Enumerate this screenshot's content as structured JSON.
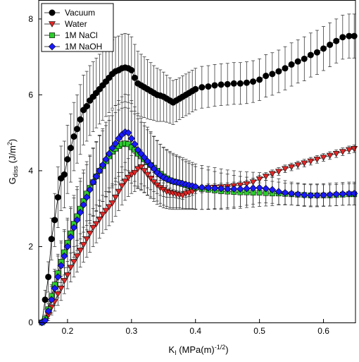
{
  "chart_data": {
    "type": "scatter",
    "title": "",
    "xlabel": {
      "main": "K",
      "sub": "I",
      "rest": " (MPa(m)",
      "sup": "-1/2",
      "end": ")"
    },
    "ylabel": {
      "main": "G",
      "sub": "diss",
      "rest": " (J/m",
      "sup": "2",
      "end": ")"
    },
    "xlim": [
      0.155,
      0.65
    ],
    "ylim": [
      0,
      8.5
    ],
    "xticks": [
      0.2,
      0.3,
      0.4,
      0.5,
      0.6
    ],
    "xtick_labels": [
      "0.2",
      "0.3",
      "0.4",
      "0.5",
      "0.6"
    ],
    "yticks": [
      0,
      2,
      4,
      6,
      8
    ],
    "ytick_labels": [
      "0",
      "2",
      "4",
      "6",
      "8"
    ],
    "grid": false,
    "legend_position": "top-left",
    "series": [
      {
        "name": "Vacuum",
        "color": "#000000",
        "marker": "circle",
        "x": [
          0.16,
          0.165,
          0.17,
          0.175,
          0.18,
          0.185,
          0.19,
          0.195,
          0.2,
          0.205,
          0.21,
          0.215,
          0.22,
          0.225,
          0.23,
          0.235,
          0.24,
          0.245,
          0.25,
          0.255,
          0.26,
          0.265,
          0.27,
          0.275,
          0.28,
          0.285,
          0.29,
          0.295,
          0.3,
          0.305,
          0.31,
          0.315,
          0.32,
          0.325,
          0.33,
          0.335,
          0.34,
          0.345,
          0.35,
          0.355,
          0.36,
          0.365,
          0.37,
          0.375,
          0.38,
          0.385,
          0.39,
          0.395,
          0.4,
          0.41,
          0.42,
          0.43,
          0.44,
          0.45,
          0.46,
          0.47,
          0.48,
          0.49,
          0.5,
          0.51,
          0.52,
          0.53,
          0.54,
          0.55,
          0.56,
          0.57,
          0.58,
          0.59,
          0.6,
          0.61,
          0.62,
          0.63,
          0.64,
          0.648
        ],
        "y": [
          0,
          0.6,
          1.2,
          2.2,
          2.7,
          3.3,
          3.8,
          3.9,
          4.3,
          4.6,
          4.9,
          5.1,
          5.35,
          5.6,
          5.7,
          5.85,
          5.95,
          6.05,
          6.15,
          6.25,
          6.35,
          6.45,
          6.55,
          6.62,
          6.65,
          6.7,
          6.72,
          6.7,
          6.65,
          6.45,
          6.3,
          6.25,
          6.2,
          6.15,
          6.1,
          6.05,
          6.0,
          5.98,
          5.95,
          5.9,
          5.85,
          5.8,
          5.85,
          5.9,
          5.95,
          6.0,
          6.05,
          6.1,
          6.15,
          6.2,
          6.22,
          6.25,
          6.27,
          6.28,
          6.3,
          6.3,
          6.32,
          6.35,
          6.4,
          6.5,
          6.55,
          6.62,
          6.7,
          6.8,
          6.88,
          6.95,
          7.05,
          7.12,
          7.22,
          7.32,
          7.42,
          7.52,
          7.55,
          7.55
        ],
        "err": [
          0,
          0.25,
          0.4,
          0.55,
          0.7,
          0.8,
          0.85,
          0.88,
          0.9,
          0.9,
          0.9,
          0.9,
          0.92,
          0.92,
          0.92,
          0.92,
          0.92,
          0.92,
          0.92,
          0.92,
          0.92,
          0.92,
          0.9,
          0.9,
          0.9,
          0.9,
          0.9,
          0.9,
          0.88,
          0.88,
          0.85,
          0.82,
          0.8,
          0.78,
          0.75,
          0.72,
          0.7,
          0.68,
          0.65,
          0.62,
          0.6,
          0.58,
          0.56,
          0.55,
          0.55,
          0.55,
          0.55,
          0.55,
          0.55,
          0.55,
          0.55,
          0.55,
          0.55,
          0.55,
          0.55,
          0.55,
          0.55,
          0.55,
          0.55,
          0.56,
          0.56,
          0.56,
          0.57,
          0.57,
          0.57,
          0.58,
          0.58,
          0.58,
          0.58,
          0.58,
          0.58,
          0.58,
          0.58,
          0.58
        ]
      },
      {
        "name": "Water",
        "color": "#e32626",
        "marker": "triangle-down",
        "x": [
          0.16,
          0.165,
          0.17,
          0.175,
          0.18,
          0.185,
          0.19,
          0.195,
          0.2,
          0.205,
          0.21,
          0.215,
          0.22,
          0.225,
          0.23,
          0.235,
          0.24,
          0.245,
          0.25,
          0.255,
          0.26,
          0.265,
          0.27,
          0.275,
          0.28,
          0.285,
          0.29,
          0.295,
          0.3,
          0.305,
          0.31,
          0.315,
          0.32,
          0.325,
          0.33,
          0.335,
          0.34,
          0.345,
          0.35,
          0.355,
          0.36,
          0.365,
          0.37,
          0.375,
          0.38,
          0.385,
          0.39,
          0.395,
          0.4,
          0.41,
          0.42,
          0.43,
          0.44,
          0.45,
          0.46,
          0.47,
          0.48,
          0.49,
          0.5,
          0.51,
          0.52,
          0.53,
          0.54,
          0.55,
          0.56,
          0.57,
          0.58,
          0.59,
          0.6,
          0.61,
          0.62,
          0.63,
          0.64,
          0.648
        ],
        "y": [
          0,
          0.05,
          0.2,
          0.4,
          0.55,
          0.75,
          0.9,
          1.1,
          1.25,
          1.45,
          1.6,
          1.75,
          1.9,
          2.05,
          2.2,
          2.35,
          2.5,
          2.6,
          2.72,
          2.85,
          2.95,
          3.05,
          3.15,
          3.3,
          3.45,
          3.6,
          3.72,
          3.82,
          3.9,
          3.95,
          4.05,
          4.1,
          4.0,
          3.9,
          3.8,
          3.7,
          3.62,
          3.55,
          3.5,
          3.45,
          3.42,
          3.4,
          3.38,
          3.36,
          3.35,
          3.4,
          3.42,
          3.45,
          3.5,
          3.52,
          3.55,
          3.56,
          3.57,
          3.58,
          3.6,
          3.62,
          3.65,
          3.7,
          3.78,
          3.85,
          3.92,
          3.98,
          4.05,
          4.1,
          4.15,
          4.2,
          4.25,
          4.3,
          4.35,
          4.4,
          4.45,
          4.5,
          4.55,
          4.58
        ],
        "err": [
          0,
          0.05,
          0.15,
          0.2,
          0.25,
          0.3,
          0.32,
          0.34,
          0.36,
          0.38,
          0.4,
          0.42,
          0.44,
          0.46,
          0.48,
          0.5,
          0.5,
          0.5,
          0.5,
          0.5,
          0.5,
          0.5,
          0.5,
          0.5,
          0.5,
          0.5,
          0.5,
          0.5,
          0.5,
          0.5,
          0.5,
          0.45,
          0.4,
          0.35,
          0.3,
          0.25,
          0.22,
          0.2,
          0.18,
          0.15,
          0.12,
          0.1,
          0.1,
          0.1,
          0.1,
          0.1,
          0.1,
          0.1,
          0.1,
          0.1,
          0.1,
          0.1,
          0.1,
          0.1,
          0.1,
          0.1,
          0.1,
          0.1,
          0.1,
          0.1,
          0.1,
          0.1,
          0.1,
          0.1,
          0.1,
          0.1,
          0.1,
          0.1,
          0.1,
          0.1,
          0.1,
          0.1,
          0.1,
          0.1
        ]
      },
      {
        "name": "1M NaCl",
        "color": "#2ecc2e",
        "marker": "square",
        "x": [
          0.16,
          0.165,
          0.17,
          0.175,
          0.18,
          0.185,
          0.19,
          0.195,
          0.2,
          0.205,
          0.21,
          0.215,
          0.22,
          0.225,
          0.23,
          0.235,
          0.24,
          0.245,
          0.25,
          0.255,
          0.26,
          0.265,
          0.27,
          0.275,
          0.28,
          0.285,
          0.29,
          0.295,
          0.3,
          0.305,
          0.31,
          0.315,
          0.32,
          0.325,
          0.33,
          0.335,
          0.34,
          0.345,
          0.35,
          0.355,
          0.36,
          0.365,
          0.37,
          0.375,
          0.38,
          0.385,
          0.39,
          0.395,
          0.4,
          0.41,
          0.42,
          0.43,
          0.44,
          0.45,
          0.46,
          0.47,
          0.48,
          0.49,
          0.5,
          0.51,
          0.52,
          0.53,
          0.54,
          0.55,
          0.56,
          0.57,
          0.58,
          0.59,
          0.6,
          0.61,
          0.62,
          0.63,
          0.64,
          0.648
        ],
        "y": [
          0,
          0.1,
          0.35,
          0.7,
          1.0,
          1.3,
          1.6,
          1.85,
          2.1,
          2.35,
          2.6,
          2.8,
          3.0,
          3.2,
          3.4,
          3.55,
          3.7,
          3.85,
          4.0,
          4.12,
          4.25,
          4.38,
          4.5,
          4.58,
          4.65,
          4.7,
          4.72,
          4.7,
          4.62,
          4.55,
          4.45,
          4.38,
          4.3,
          4.22,
          4.15,
          4.08,
          4.0,
          3.92,
          3.85,
          3.8,
          3.75,
          3.72,
          3.7,
          3.68,
          3.65,
          3.62,
          3.6,
          3.58,
          3.55,
          3.52,
          3.5,
          3.48,
          3.46,
          3.45,
          3.44,
          3.43,
          3.43,
          3.42,
          3.42,
          3.41,
          3.4,
          3.4,
          3.39,
          3.38,
          3.37,
          3.36,
          3.35,
          3.35,
          3.35,
          3.35,
          3.36,
          3.37,
          3.38,
          3.38
        ],
        "err": [
          0,
          0.1,
          0.2,
          0.3,
          0.4,
          0.5,
          0.55,
          0.6,
          0.65,
          0.7,
          0.75,
          0.78,
          0.8,
          0.82,
          0.84,
          0.86,
          0.88,
          0.9,
          0.92,
          0.93,
          0.94,
          0.95,
          0.95,
          0.95,
          0.95,
          0.95,
          0.95,
          0.95,
          0.95,
          0.95,
          0.92,
          0.9,
          0.88,
          0.86,
          0.84,
          0.82,
          0.8,
          0.78,
          0.76,
          0.74,
          0.72,
          0.7,
          0.68,
          0.66,
          0.64,
          0.62,
          0.6,
          0.58,
          0.56,
          0.54,
          0.52,
          0.5,
          0.48,
          0.46,
          0.44,
          0.42,
          0.4,
          0.38,
          0.36,
          0.34,
          0.32,
          0.3,
          0.28,
          0.28,
          0.28,
          0.28,
          0.28,
          0.28,
          0.28,
          0.28,
          0.28,
          0.28,
          0.28,
          0.28
        ]
      },
      {
        "name": "1M NaOH",
        "color": "#1a1aff",
        "marker": "diamond",
        "x": [
          0.16,
          0.165,
          0.17,
          0.175,
          0.18,
          0.185,
          0.19,
          0.195,
          0.2,
          0.205,
          0.21,
          0.215,
          0.22,
          0.225,
          0.23,
          0.235,
          0.24,
          0.245,
          0.25,
          0.255,
          0.26,
          0.265,
          0.27,
          0.275,
          0.28,
          0.285,
          0.29,
          0.295,
          0.3,
          0.305,
          0.31,
          0.315,
          0.32,
          0.325,
          0.33,
          0.335,
          0.34,
          0.345,
          0.35,
          0.355,
          0.36,
          0.365,
          0.37,
          0.375,
          0.38,
          0.385,
          0.39,
          0.395,
          0.4,
          0.41,
          0.42,
          0.43,
          0.44,
          0.45,
          0.46,
          0.47,
          0.48,
          0.49,
          0.5,
          0.51,
          0.52,
          0.53,
          0.54,
          0.55,
          0.56,
          0.57,
          0.58,
          0.59,
          0.6,
          0.61,
          0.62,
          0.63,
          0.64,
          0.648
        ],
        "y": [
          0,
          0.05,
          0.3,
          0.6,
          0.9,
          1.2,
          1.5,
          1.75,
          2.0,
          2.25,
          2.5,
          2.7,
          2.9,
          3.1,
          3.3,
          3.5,
          3.7,
          3.85,
          4.0,
          4.15,
          4.3,
          4.45,
          4.6,
          4.72,
          4.85,
          4.95,
          5.02,
          5.0,
          4.85,
          4.7,
          4.55,
          4.45,
          4.35,
          4.25,
          4.15,
          4.05,
          3.95,
          3.88,
          3.82,
          3.78,
          3.75,
          3.72,
          3.7,
          3.68,
          3.66,
          3.64,
          3.62,
          3.6,
          3.58,
          3.56,
          3.55,
          3.54,
          3.53,
          3.52,
          3.52,
          3.52,
          3.53,
          3.54,
          3.55,
          3.53,
          3.5,
          3.45,
          3.42,
          3.4,
          3.38,
          3.36,
          3.35,
          3.35,
          3.36,
          3.37,
          3.38,
          3.39,
          3.4,
          3.4
        ],
        "err": [
          0,
          0.1,
          0.2,
          0.35,
          0.45,
          0.55,
          0.6,
          0.65,
          0.7,
          0.75,
          0.78,
          0.8,
          0.82,
          0.84,
          0.86,
          0.88,
          0.9,
          0.92,
          0.94,
          0.96,
          0.98,
          1.0,
          1.0,
          1.0,
          1.0,
          1.0,
          1.0,
          1.0,
          1.0,
          0.98,
          0.96,
          0.94,
          0.92,
          0.9,
          0.88,
          0.86,
          0.84,
          0.82,
          0.8,
          0.78,
          0.76,
          0.74,
          0.72,
          0.7,
          0.68,
          0.66,
          0.64,
          0.62,
          0.6,
          0.58,
          0.56,
          0.54,
          0.52,
          0.5,
          0.48,
          0.46,
          0.44,
          0.42,
          0.4,
          0.38,
          0.36,
          0.34,
          0.32,
          0.3,
          0.3,
          0.3,
          0.3,
          0.3,
          0.3,
          0.3,
          0.3,
          0.3,
          0.3,
          0.3
        ]
      }
    ]
  }
}
